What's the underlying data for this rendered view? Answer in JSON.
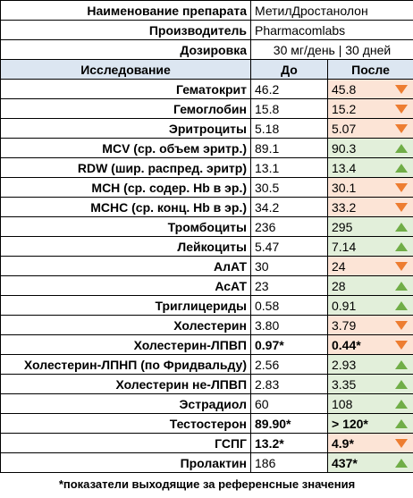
{
  "meta": {
    "drug_label": "Наименование препарата",
    "drug_value": "МетилДростанолон",
    "maker_label": "Производитель",
    "maker_value": "Pharmacomlabs",
    "dose_label": "Дозировка",
    "dose_value": "30 мг/день |  30 дней"
  },
  "headers": {
    "test": "Исследование",
    "before": "До",
    "after": "После"
  },
  "rows": [
    {
      "name": "Гематокрит",
      "before": "46.2",
      "after": "45.8",
      "trend": "down",
      "before_bold": false,
      "after_bold": false
    },
    {
      "name": "Гемоглобин",
      "before": "15.8",
      "after": "15.2",
      "trend": "down",
      "before_bold": false,
      "after_bold": false
    },
    {
      "name": "Эритроциты",
      "before": "5.18",
      "after": "5.07",
      "trend": "down",
      "before_bold": false,
      "after_bold": false
    },
    {
      "name": "MCV (ср. объем эритр.)",
      "before": "89.1",
      "after": "90.3",
      "trend": "up",
      "before_bold": false,
      "after_bold": false
    },
    {
      "name": "RDW (шир. распред. эритр)",
      "before": "13.1",
      "after": "13.4",
      "trend": "up",
      "before_bold": false,
      "after_bold": false
    },
    {
      "name": "MCH (ср. содер. Hb в эр.)",
      "before": "30.5",
      "after": "30.1",
      "trend": "down",
      "before_bold": false,
      "after_bold": false
    },
    {
      "name": "MCHC (ср. конц. Hb в эр.)",
      "before": "34.2",
      "after": "33.2",
      "trend": "down",
      "before_bold": false,
      "after_bold": false
    },
    {
      "name": "Тромбоциты",
      "before": "236",
      "after": "295",
      "trend": "up",
      "before_bold": false,
      "after_bold": false
    },
    {
      "name": "Лейкоциты",
      "before": "5.47",
      "after": "7.14",
      "trend": "up",
      "before_bold": false,
      "after_bold": false
    },
    {
      "name": "АлАТ",
      "before": "30",
      "after": "24",
      "trend": "down",
      "before_bold": false,
      "after_bold": false
    },
    {
      "name": "АсАТ",
      "before": "23",
      "after": "28",
      "trend": "up",
      "before_bold": false,
      "after_bold": false
    },
    {
      "name": "Триглицериды",
      "before": "0.58",
      "after": "0.91",
      "trend": "up",
      "before_bold": false,
      "after_bold": false
    },
    {
      "name": "Холестерин",
      "before": "3.80",
      "after": "3.79",
      "trend": "down",
      "before_bold": false,
      "after_bold": false
    },
    {
      "name": "Холестерин-ЛПВП",
      "before": "0.97*",
      "after": "0.44*",
      "trend": "down",
      "before_bold": true,
      "after_bold": true
    },
    {
      "name": "Холестерин-ЛПНП (по Фридвальду)",
      "before": "2.56",
      "after": "2.93",
      "trend": "up",
      "before_bold": false,
      "after_bold": false
    },
    {
      "name": "Холестерин не-ЛПВП",
      "before": "2.83",
      "after": "3.35",
      "trend": "up",
      "before_bold": false,
      "after_bold": false
    },
    {
      "name": "Эстрадиол",
      "before": "60",
      "after": "108",
      "trend": "up",
      "before_bold": false,
      "after_bold": false
    },
    {
      "name": "Тестостерон",
      "before": "89.90*",
      "after": "> 120*",
      "trend": "up",
      "before_bold": true,
      "after_bold": true
    },
    {
      "name": "ГСПГ",
      "before": "13.2*",
      "after": "4.9*",
      "trend": "down",
      "before_bold": true,
      "after_bold": true
    },
    {
      "name": "Пролактин",
      "before": "186",
      "after": "437*",
      "trend": "up",
      "before_bold": false,
      "after_bold": true
    }
  ],
  "footnote": "*показатели выходящие за референсные значения",
  "colors": {
    "down_fill": "#fce4d6",
    "up_fill": "#e2efda",
    "down_arrow": "#ed7d31",
    "up_arrow": "#70ad47",
    "header_fill": "#dce6f1"
  }
}
